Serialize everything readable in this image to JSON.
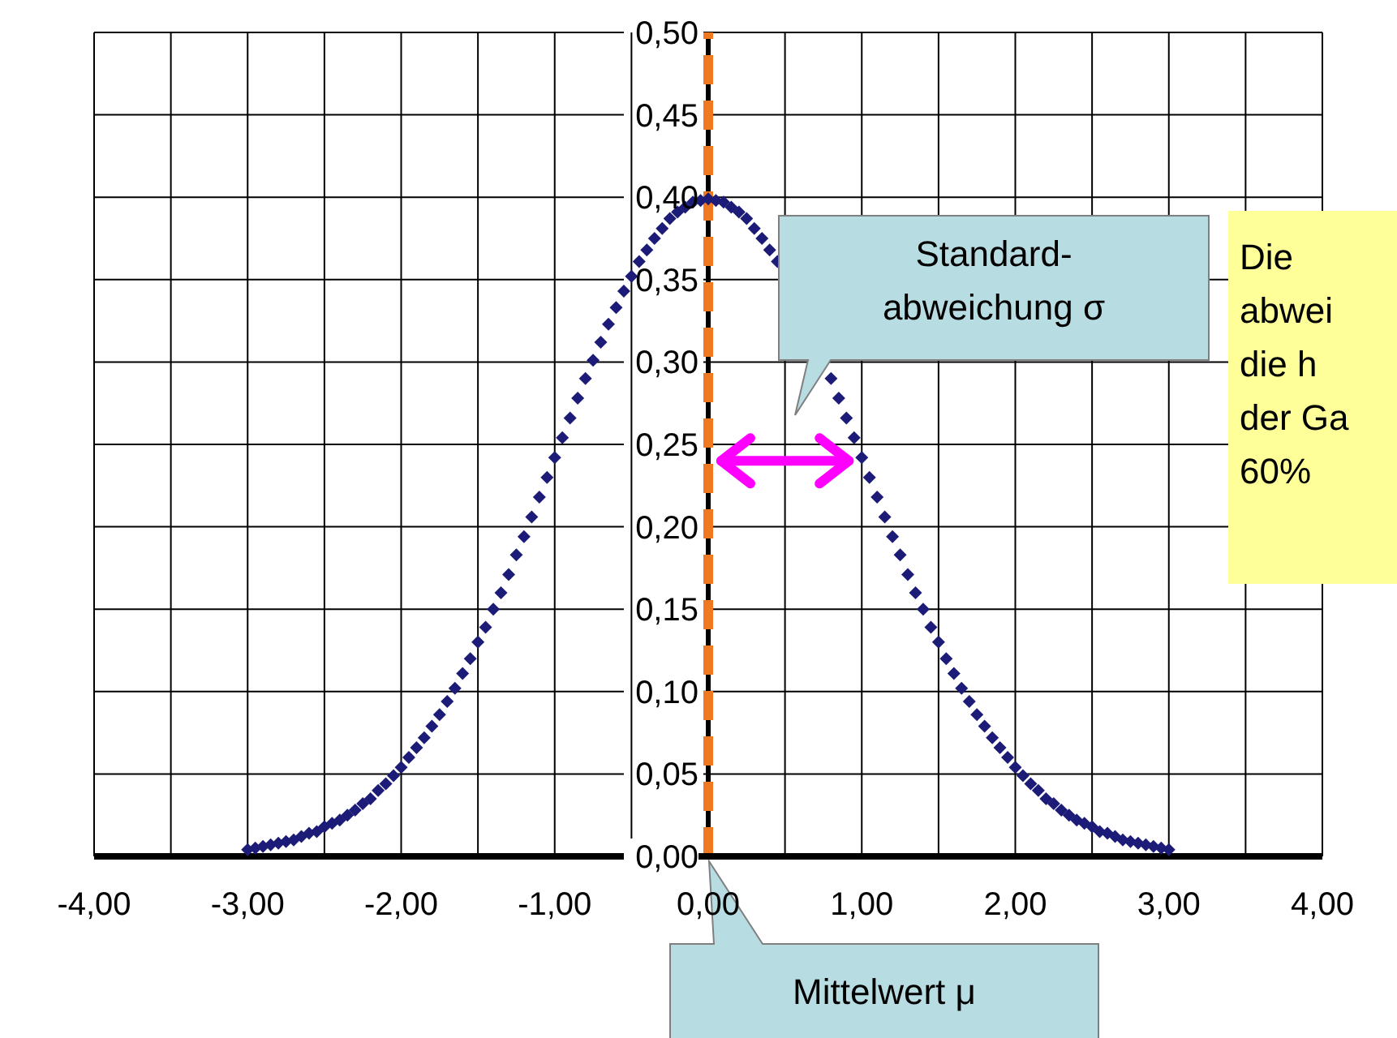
{
  "chart_data": {
    "type": "scatter",
    "marker": "diamond",
    "grid": true,
    "x": [
      -3,
      -2.95,
      -2.9,
      -2.85,
      -2.8,
      -2.75,
      -2.7,
      -2.65,
      -2.6,
      -2.55,
      -2.5,
      -2.45,
      -2.4,
      -2.35,
      -2.3,
      -2.25,
      -2.2,
      -2.15,
      -2.1,
      -2.05,
      -2,
      -1.95,
      -1.9,
      -1.85,
      -1.8,
      -1.75,
      -1.7,
      -1.65,
      -1.6,
      -1.55,
      -1.5,
      -1.45,
      -1.4,
      -1.35,
      -1.3,
      -1.25,
      -1.2,
      -1.15,
      -1.1,
      -1.05,
      -1,
      -0.95,
      -0.9,
      -0.85,
      -0.8,
      -0.75,
      -0.7,
      -0.65,
      -0.6,
      -0.55,
      -0.5,
      -0.45,
      -0.4,
      -0.35,
      -0.3,
      -0.25,
      -0.2,
      -0.15,
      -0.1,
      -0.05,
      0,
      0.05,
      0.1,
      0.15,
      0.2,
      0.25,
      0.3,
      0.35,
      0.4,
      0.45,
      0.5,
      0.55,
      0.6,
      0.65,
      0.7,
      0.75,
      0.8,
      0.85,
      0.9,
      0.95,
      1,
      1.05,
      1.1,
      1.15,
      1.2,
      1.25,
      1.3,
      1.35,
      1.4,
      1.45,
      1.5,
      1.55,
      1.6,
      1.65,
      1.7,
      1.75,
      1.8,
      1.85,
      1.9,
      1.95,
      2,
      2.05,
      2.1,
      2.15,
      2.2,
      2.25,
      2.3,
      2.35,
      2.4,
      2.45,
      2.5,
      2.55,
      2.6,
      2.65,
      2.7,
      2.75,
      2.8,
      2.85,
      2.9,
      2.95,
      3
    ],
    "series": [
      {
        "color": "#1c1c78",
        "values": [
          0.004,
          0.005,
          0.006,
          0.007,
          0.008,
          0.009,
          0.01,
          0.012,
          0.014,
          0.015,
          0.018,
          0.02,
          0.022,
          0.025,
          0.028,
          0.032,
          0.035,
          0.04,
          0.044,
          0.049,
          0.054,
          0.06,
          0.066,
          0.072,
          0.079,
          0.086,
          0.094,
          0.102,
          0.111,
          0.12,
          0.13,
          0.139,
          0.15,
          0.16,
          0.171,
          0.183,
          0.194,
          0.206,
          0.218,
          0.23,
          0.242,
          0.254,
          0.266,
          0.278,
          0.29,
          0.301,
          0.312,
          0.323,
          0.333,
          0.343,
          0.352,
          0.361,
          0.368,
          0.375,
          0.381,
          0.387,
          0.391,
          0.394,
          0.397,
          0.398,
          0.399,
          0.398,
          0.397,
          0.394,
          0.391,
          0.387,
          0.381,
          0.375,
          0.368,
          0.361,
          null,
          null,
          null,
          null,
          null,
          null,
          0.29,
          0.278,
          0.266,
          0.254,
          0.242,
          0.23,
          0.218,
          0.206,
          0.194,
          0.183,
          0.171,
          0.16,
          0.15,
          0.139,
          0.13,
          0.12,
          0.111,
          0.102,
          0.094,
          0.086,
          0.079,
          0.072,
          0.066,
          0.06,
          0.054,
          0.049,
          0.044,
          0.04,
          0.035,
          0.032,
          0.028,
          0.025,
          0.022,
          0.02,
          0.018,
          0.015,
          0.014,
          0.012,
          0.01,
          0.009,
          0.008,
          0.007,
          0.006,
          0.005,
          0.004
        ]
      }
    ],
    "xlim": [
      -4,
      4
    ],
    "xticks": [
      {
        "value": -4,
        "label": "-4,00"
      },
      {
        "value": -3.5,
        "label": null
      },
      {
        "value": -3,
        "label": "-3,00"
      },
      {
        "value": -2.5,
        "label": null
      },
      {
        "value": -2,
        "label": "-2,00"
      },
      {
        "value": -1.5,
        "label": null
      },
      {
        "value": -1,
        "label": "-1,00"
      },
      {
        "value": -0.5,
        "label": null
      },
      {
        "value": 0,
        "label": "0,00"
      },
      {
        "value": 0.5,
        "label": null
      },
      {
        "value": 1,
        "label": "1,00"
      },
      {
        "value": 1.5,
        "label": null
      },
      {
        "value": 2,
        "label": "2,00"
      },
      {
        "value": 2.5,
        "label": null
      },
      {
        "value": 3,
        "label": "3,00"
      },
      {
        "value": 3.5,
        "label": null
      },
      {
        "value": 4,
        "label": "4,00"
      }
    ],
    "ylim": [
      0,
      0.5
    ],
    "yticks": [
      {
        "value": 0,
        "label": "0,00"
      },
      {
        "value": 0.05,
        "label": "0,05"
      },
      {
        "value": 0.1,
        "label": "0,10"
      },
      {
        "value": 0.15,
        "label": "0,15"
      },
      {
        "value": 0.2,
        "label": "0,20"
      },
      {
        "value": 0.25,
        "label": "0,25"
      },
      {
        "value": 0.3,
        "label": "0,30"
      },
      {
        "value": 0.35,
        "label": "0,35"
      },
      {
        "value": 0.4,
        "label": "0,40"
      },
      {
        "value": 0.45,
        "label": "0,45"
      },
      {
        "value": 0.5,
        "label": "0,50"
      }
    ],
    "ref_lines": [
      {
        "axis": "x",
        "value": 0,
        "color": "#f07820",
        "line_style": "dashed"
      }
    ],
    "annotations": [
      "Standard-\nabweichung σ",
      "Mittelwert μ",
      "Die\nabwei\ndie h\nder Ga\n60%"
    ]
  }
}
